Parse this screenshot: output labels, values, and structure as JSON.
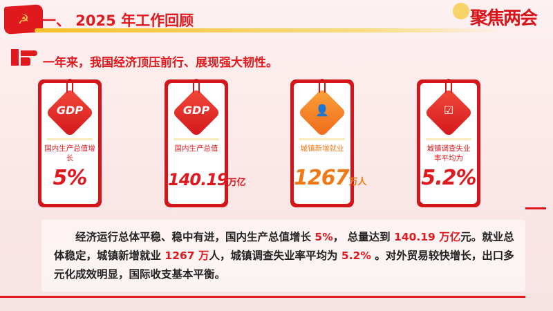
{
  "header": {
    "title": "一、 2025 年工作回顾",
    "logo_text": "聚焦两会"
  },
  "subtitle": "一年来，我国经济顶压前行、展现强大韧性。",
  "cards": [
    {
      "icon": "gdp-icon",
      "icon_text": "GDP",
      "label": "国内生产总值增长",
      "value": "5%",
      "unit": ""
    },
    {
      "icon": "gdp-icon",
      "icon_text": "GDP",
      "label": "国内生产总值",
      "value": "140.19",
      "unit": "万亿"
    },
    {
      "icon": "worker-icon",
      "label": "城镇新增就业",
      "value": "1267",
      "unit": "万人"
    },
    {
      "icon": "checklist-icon",
      "label": "城镇调查失业率平均为",
      "value": "5.2%",
      "unit": ""
    }
  ],
  "summary": {
    "p1": "经济运行总体平稳、稳中有进，国内生产总值增长 ",
    "h1": "5%",
    "p2": "， 总量达到 ",
    "h2": "140.19 万亿",
    "p3": "元。就业总体稳定，城镇新增就业 ",
    "h3": "1267 万",
    "p4": "人，城镇调查失业率平均为 ",
    "h4": "5.2%",
    "p5": " 。对外贸易较快增长，出口多元化成效明显，国际收支基本平衡。"
  },
  "colors": {
    "accent": "#e0191e",
    "orange": "#f07a1a",
    "gold": "#f2c12a"
  }
}
